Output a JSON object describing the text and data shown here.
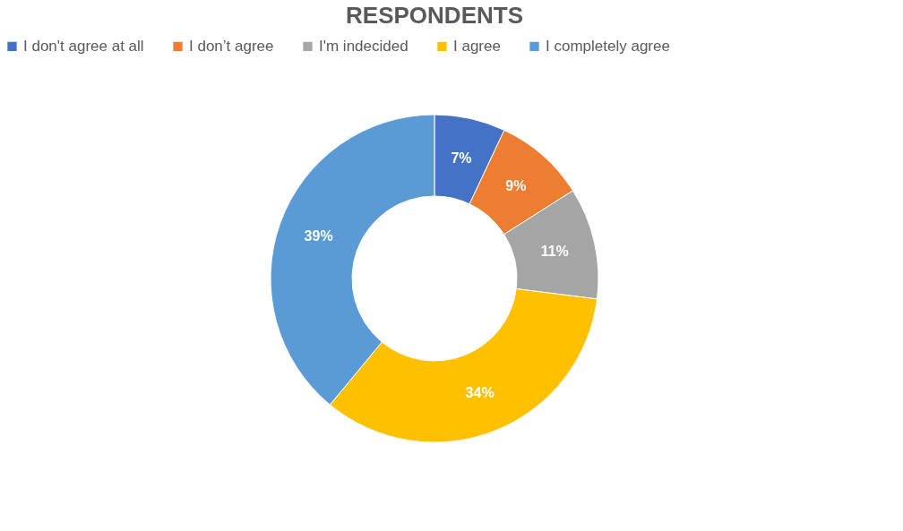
{
  "chart_data": {
    "type": "donut",
    "title": "RESPONDENTS",
    "categories": [
      "I don't agree at all",
      "I don’t agree",
      "I'm indecided",
      "I agree",
      "I completely agree"
    ],
    "values": [
      7,
      9,
      11,
      34,
      39
    ],
    "colors": [
      "#4472c4",
      "#ed7d31",
      "#a5a5a5",
      "#ffc000",
      "#5b9bd5"
    ],
    "value_labels": [
      "7%",
      "9%",
      "11%",
      "34%",
      "39%"
    ],
    "legend": "top"
  }
}
